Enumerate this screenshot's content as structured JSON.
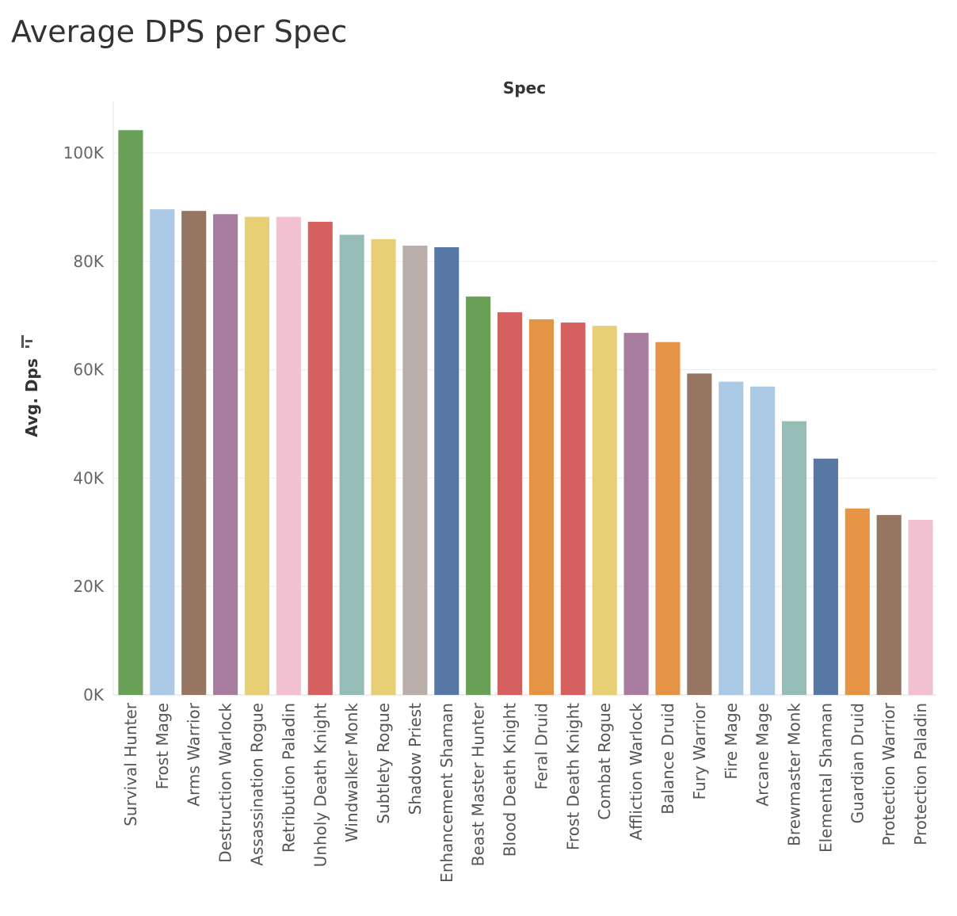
{
  "chart_data": {
    "type": "bar",
    "title": "Average DPS per Spec",
    "xlabel": "Spec",
    "ylabel": "Avg. Dps",
    "ylim": [
      0,
      110000
    ],
    "yticks": [
      0,
      20000,
      40000,
      60000,
      80000,
      100000
    ],
    "ytick_labels": [
      "0K",
      "20K",
      "40K",
      "60K",
      "80K",
      "100K"
    ],
    "grid": true,
    "sort_icon": "sort-descending-icon",
    "categories": [
      "Survival Hunter",
      "Frost Mage",
      "Arms Warrior",
      "Destruction Warlock",
      "Assassination Rogue",
      "Retribution Paladin",
      "Unholy Death Knight",
      "Windwalker Monk",
      "Subtlety Rogue",
      "Shadow Priest",
      "Enhancement Shaman",
      "Beast Master Hunter",
      "Blood Death Knight",
      "Feral Druid",
      "Frost Death Knight",
      "Combat Rogue",
      "Affliction Warlock",
      "Balance Druid",
      "Fury Warrior",
      "Fire Mage",
      "Arcane Mage",
      "Brewmaster Monk",
      "Elemental Shaman",
      "Guardian Druid",
      "Protection Warrior",
      "Protection Paladin"
    ],
    "values": [
      104200,
      89600,
      89300,
      88700,
      88200,
      88200,
      87300,
      84900,
      84100,
      82900,
      82600,
      73500,
      70600,
      69300,
      68700,
      68100,
      66800,
      65100,
      59300,
      57800,
      56900,
      50500,
      43600,
      34400,
      33200,
      32300
    ],
    "colors": [
      "#6a9f58",
      "#a9c9e4",
      "#967662",
      "#a87c9f",
      "#e8cf75",
      "#f2c1d1",
      "#d46060",
      "#96bcb6",
      "#e8cf75",
      "#b9aea9",
      "#5778a4",
      "#6a9f58",
      "#d46060",
      "#e49444",
      "#d46060",
      "#e8cf75",
      "#a87c9f",
      "#e49444",
      "#967662",
      "#a9c9e4",
      "#a9c9e4",
      "#96bcb6",
      "#5778a4",
      "#e49444",
      "#967662",
      "#f2c1d1"
    ]
  }
}
